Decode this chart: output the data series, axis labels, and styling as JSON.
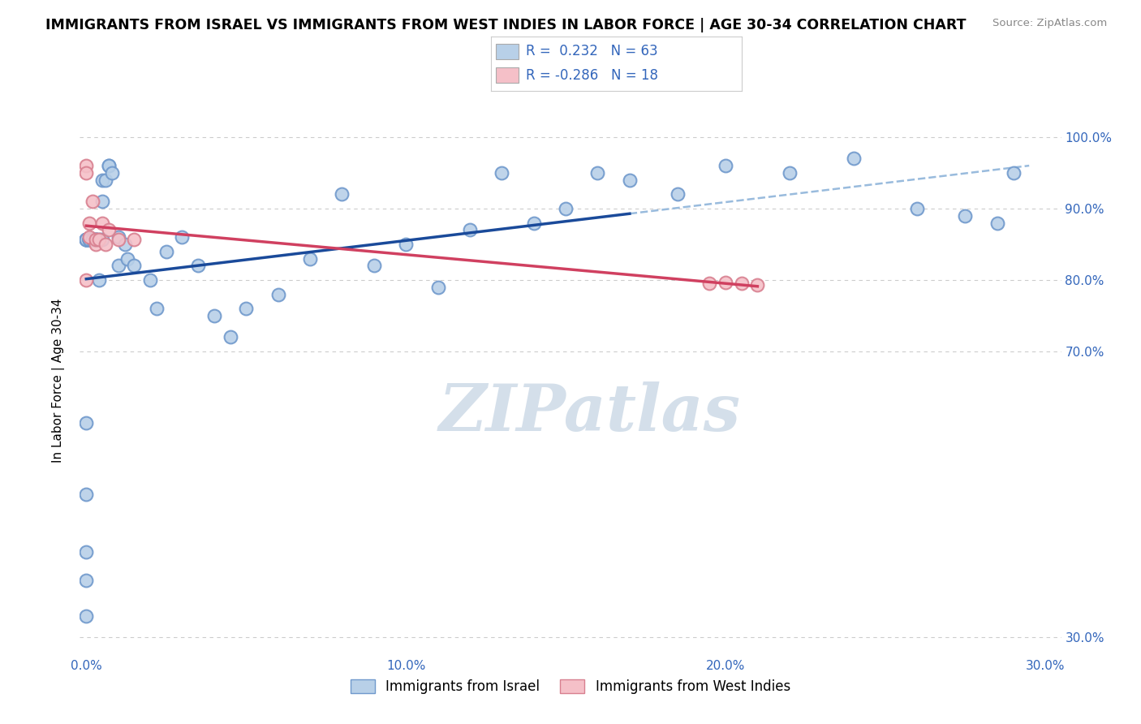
{
  "title": "IMMIGRANTS FROM ISRAEL VS IMMIGRANTS FROM WEST INDIES IN LABOR FORCE | AGE 30-34 CORRELATION CHART",
  "source": "Source: ZipAtlas.com",
  "ylabel": "In Labor Force | Age 30-34",
  "xlim": [
    -0.002,
    0.305
  ],
  "ylim": [
    0.28,
    1.04
  ],
  "xtick_positions": [
    0.0,
    0.1,
    0.2,
    0.3
  ],
  "xtick_labels": [
    "0.0%",
    "10.0%",
    "20.0%",
    "30.0%"
  ],
  "ytick_positions": [
    0.3,
    0.7,
    0.8,
    0.9,
    1.0
  ],
  "ytick_labels": [
    "30.0%",
    "70.0%",
    "80.0%",
    "90.0%",
    "100.0%"
  ],
  "legend_entries": [
    {
      "label": "R =  0.232   N = 63",
      "color": "#b8d0e8"
    },
    {
      "label": "R = -0.286   N = 18",
      "color": "#f5c0c8"
    }
  ],
  "legend_bottom": [
    "Immigrants from Israel",
    "Immigrants from West Indies"
  ],
  "israel_color": "#b8d0e8",
  "israel_edge": "#7099cc",
  "west_indies_color": "#f5c0c8",
  "west_indies_edge": "#d88090",
  "trend_israel_color": "#1a4a9a",
  "trend_west_indies_color": "#d04060",
  "trend_dashed_color": "#99bbdd",
  "watermark_color": "#d0dce8",
  "background_color": "#ffffff",
  "grid_color": "#cccccc",
  "israel_x": [
    0.0,
    0.0,
    0.0,
    0.0,
    0.0,
    0.0,
    0.0,
    0.0,
    0.0,
    0.0,
    0.001,
    0.001,
    0.001,
    0.001,
    0.001,
    0.002,
    0.002,
    0.002,
    0.003,
    0.003,
    0.003,
    0.004,
    0.004,
    0.005,
    0.005,
    0.005,
    0.006,
    0.007,
    0.007,
    0.008,
    0.01,
    0.01,
    0.012,
    0.013,
    0.015,
    0.02,
    0.022,
    0.025,
    0.03,
    0.035,
    0.04,
    0.045,
    0.05,
    0.06,
    0.07,
    0.08,
    0.09,
    0.1,
    0.11,
    0.12,
    0.13,
    0.14,
    0.15,
    0.16,
    0.17,
    0.185,
    0.2,
    0.22,
    0.24,
    0.26,
    0.275,
    0.285,
    0.29
  ],
  "israel_y": [
    0.857,
    0.857,
    0.857,
    0.857,
    0.857,
    0.6,
    0.5,
    0.42,
    0.38,
    0.33,
    0.857,
    0.857,
    0.857,
    0.857,
    0.857,
    0.857,
    0.857,
    0.857,
    0.857,
    0.857,
    0.857,
    0.857,
    0.8,
    0.857,
    0.91,
    0.94,
    0.94,
    0.96,
    0.96,
    0.95,
    0.86,
    0.82,
    0.85,
    0.83,
    0.82,
    0.8,
    0.76,
    0.84,
    0.86,
    0.82,
    0.75,
    0.72,
    0.76,
    0.78,
    0.83,
    0.92,
    0.82,
    0.85,
    0.79,
    0.87,
    0.95,
    0.88,
    0.9,
    0.95,
    0.94,
    0.92,
    0.96,
    0.95,
    0.97,
    0.9,
    0.89,
    0.88,
    0.95
  ],
  "west_indies_x": [
    0.0,
    0.0,
    0.0,
    0.001,
    0.001,
    0.002,
    0.003,
    0.003,
    0.004,
    0.005,
    0.006,
    0.007,
    0.01,
    0.015,
    0.195,
    0.2,
    0.205,
    0.21
  ],
  "west_indies_y": [
    0.96,
    0.95,
    0.8,
    0.88,
    0.86,
    0.91,
    0.85,
    0.857,
    0.857,
    0.88,
    0.85,
    0.87,
    0.857,
    0.857,
    0.795,
    0.797,
    0.795,
    0.793
  ]
}
